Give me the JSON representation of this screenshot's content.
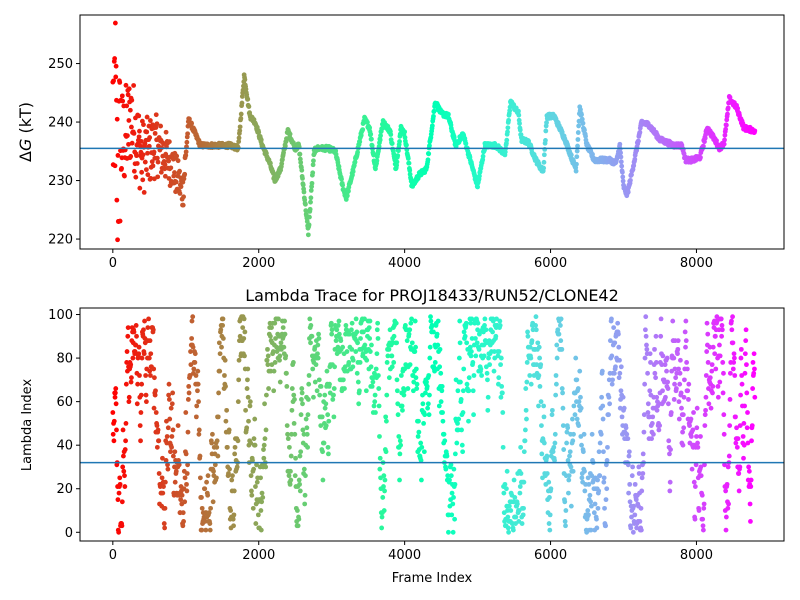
{
  "figure": {
    "background": "#ffffff"
  },
  "chart_data": [
    {
      "type": "scatter",
      "title": "",
      "xlabel": "",
      "ylabel": "ΔG (kT)",
      "ylabel_parts": {
        "delta": "Δ",
        "symbol": "G",
        "unit": " (kT)"
      },
      "xlim": [
        -450,
        9200
      ],
      "ylim": [
        218.3,
        258.3
      ],
      "xticks": [
        0,
        2000,
        4000,
        6000,
        8000
      ],
      "xtick_labels": [
        "0",
        "2000",
        "4000",
        "6000",
        "8000"
      ],
      "yticks": [
        220,
        230,
        240,
        250
      ],
      "ytick_labels": [
        "220",
        "230",
        "240",
        "250"
      ],
      "hline": {
        "y": 235.5,
        "color": "#1f77b4"
      },
      "colormap": "rainbow (reversed: red at frame 0 to violet at last frame)",
      "points_per_frame_step": 5,
      "x_range": [
        0,
        8800
      ],
      "trace_keypoints": {
        "x": [
          0,
          30,
          60,
          100,
          160,
          250,
          400,
          600,
          800,
          960,
          1040,
          1200,
          1400,
          1600,
          1720,
          1800,
          1880,
          1950,
          2050,
          2150,
          2220,
          2300,
          2400,
          2500,
          2550,
          2620,
          2680,
          2720,
          2760,
          2800,
          2850,
          2950,
          3050,
          3150,
          3200,
          3300,
          3450,
          3520,
          3600,
          3700,
          3800,
          3880,
          3950,
          4000,
          4100,
          4200,
          4300,
          4420,
          4500,
          4600,
          4700,
          4800,
          4900,
          5000,
          5100,
          5250,
          5380,
          5450,
          5560,
          5600,
          5700,
          5800,
          5900,
          5950,
          6050,
          6200,
          6300,
          6350,
          6400,
          6500,
          6600,
          6700,
          6800,
          6900,
          6950,
          7000,
          7050,
          7150,
          7250,
          7350,
          7500,
          7600,
          7700,
          7800,
          7850,
          7950,
          8050,
          8150,
          8250,
          8320,
          8380,
          8450,
          8550,
          8650,
          8800
        ],
        "y": [
          240,
          245,
          230,
          236,
          237,
          241,
          234,
          236,
          233,
          228,
          240.5,
          236,
          236,
          236,
          235.5,
          248,
          241,
          240,
          236,
          233,
          230,
          232,
          238.5,
          235.5,
          236,
          228,
          221,
          228,
          235,
          235.5,
          235.5,
          235.5,
          235,
          229,
          227,
          232,
          240.5,
          239,
          232,
          240,
          238.5,
          232,
          239,
          238,
          229,
          231,
          232,
          243.5,
          241.5,
          241,
          236,
          238,
          233.5,
          229,
          236,
          236,
          234.5,
          243.5,
          241.5,
          237,
          236.5,
          233.5,
          231.5,
          241,
          241,
          237,
          233.5,
          232,
          242.5,
          236,
          233.5,
          233.5,
          233.5,
          233,
          236,
          229,
          227.5,
          233.5,
          240,
          239.5,
          237,
          236.5,
          236,
          236,
          233.5,
          233.5,
          234,
          239,
          237,
          235.5,
          236.5,
          244,
          242.5,
          239,
          238.5
        ]
      },
      "initial_scatter_band": {
        "x_range": [
          0,
          1000
        ],
        "y_spread_start": 22,
        "y_spread_end": 5
      }
    },
    {
      "type": "scatter",
      "title": "Lambda Trace for PROJ18433/RUN52/CLONE42",
      "xlabel": "Frame Index",
      "ylabel": "Lambda Index",
      "xlim": [
        -450,
        9200
      ],
      "ylim": [
        -4,
        103
      ],
      "xticks": [
        0,
        2000,
        4000,
        6000,
        8000
      ],
      "xtick_labels": [
        "0",
        "2000",
        "4000",
        "6000",
        "8000"
      ],
      "yticks": [
        0,
        20,
        40,
        60,
        80,
        100
      ],
      "ytick_labels": [
        "0",
        "20",
        "40",
        "60",
        "80",
        "100"
      ],
      "hline": {
        "y": 32,
        "color": "#1f77b4"
      },
      "colormap": "rainbow (reversed: red at frame 0 to violet at last frame)",
      "x_range": [
        0,
        8800
      ],
      "y_range": [
        0,
        99
      ],
      "points_per_frame_step": 5
    }
  ]
}
